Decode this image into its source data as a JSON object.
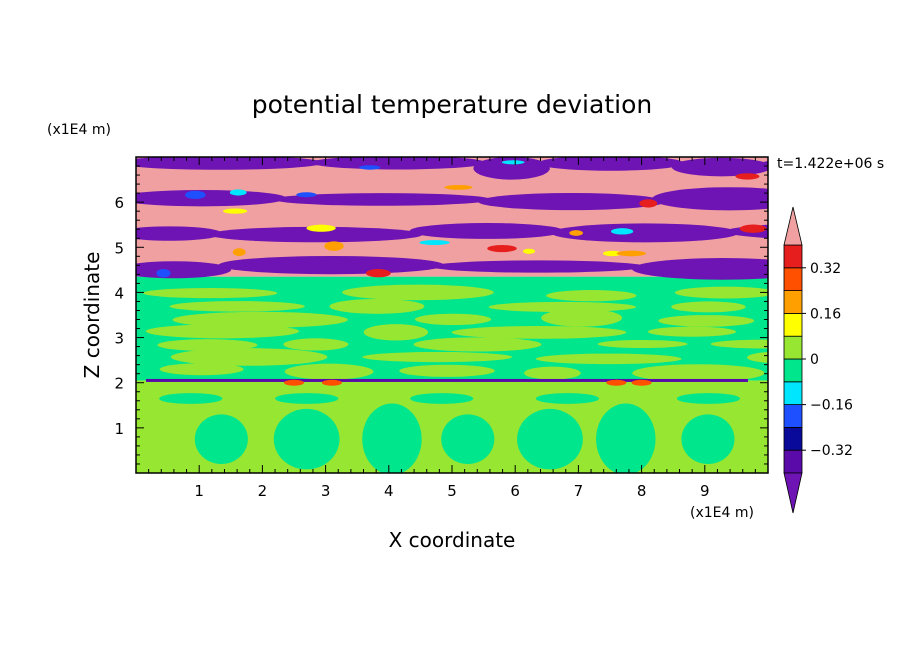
{
  "chart_data": {
    "type": "heatmap",
    "title": "potential temperature deviation",
    "xlabel": "X coordinate",
    "ylabel": "Z coordinate",
    "x_unit": "(x1E4 m)",
    "y_unit": "(x1E4 m)",
    "time_label": "t=1.422e+06 s",
    "xlim": [
      0,
      10
    ],
    "ylim": [
      0,
      7
    ],
    "x_ticks": [
      {
        "value": 1,
        "label": "1"
      },
      {
        "value": 2,
        "label": "2"
      },
      {
        "value": 3,
        "label": "3"
      },
      {
        "value": 4,
        "label": "4"
      },
      {
        "value": 5,
        "label": "5"
      },
      {
        "value": 6,
        "label": "6"
      },
      {
        "value": 7,
        "label": "7"
      },
      {
        "value": 8,
        "label": "8"
      },
      {
        "value": 9,
        "label": "9"
      }
    ],
    "y_ticks": [
      {
        "value": 1,
        "label": "1"
      },
      {
        "value": 2,
        "label": "2"
      },
      {
        "value": 3,
        "label": "3"
      },
      {
        "value": 4,
        "label": "4"
      },
      {
        "value": 5,
        "label": "5"
      },
      {
        "value": 6,
        "label": "6"
      }
    ],
    "colorbar": {
      "min": -0.4,
      "max": 0.4,
      "step": 0.08,
      "extend": "both",
      "labels": [
        {
          "value": 0.32,
          "label": "0.32"
        },
        {
          "value": 0.16,
          "label": "0.16"
        },
        {
          "value": 0,
          "label": "0"
        },
        {
          "value": -0.16,
          "label": "−0.16"
        },
        {
          "value": -0.32,
          "label": "−0.32"
        }
      ],
      "colors": [
        "#5a0aa8",
        "#0a0a9a",
        "#1e50ff",
        "#00e6ff",
        "#00e68c",
        "#96e632",
        "#ffff00",
        "#ffa000",
        "#ff5000",
        "#e61e1e"
      ],
      "under_color": "#6e14b4",
      "over_color": "#f0a0a0"
    },
    "z_interfaces": [
      2.05,
      4.35
    ],
    "regions": [
      {
        "z_range": [
          0,
          2.05
        ],
        "pattern": "convective cells",
        "background_value": 0.02,
        "feature_value": -0.02
      },
      {
        "z_range": [
          2.05,
          4.35
        ],
        "pattern": "horizontal streaks",
        "background_value": -0.02,
        "feature_value": 0.02
      },
      {
        "z_range": [
          4.35,
          7
        ],
        "pattern": "alternating layers",
        "values": [
          0.48,
          -0.48
        ]
      }
    ]
  }
}
